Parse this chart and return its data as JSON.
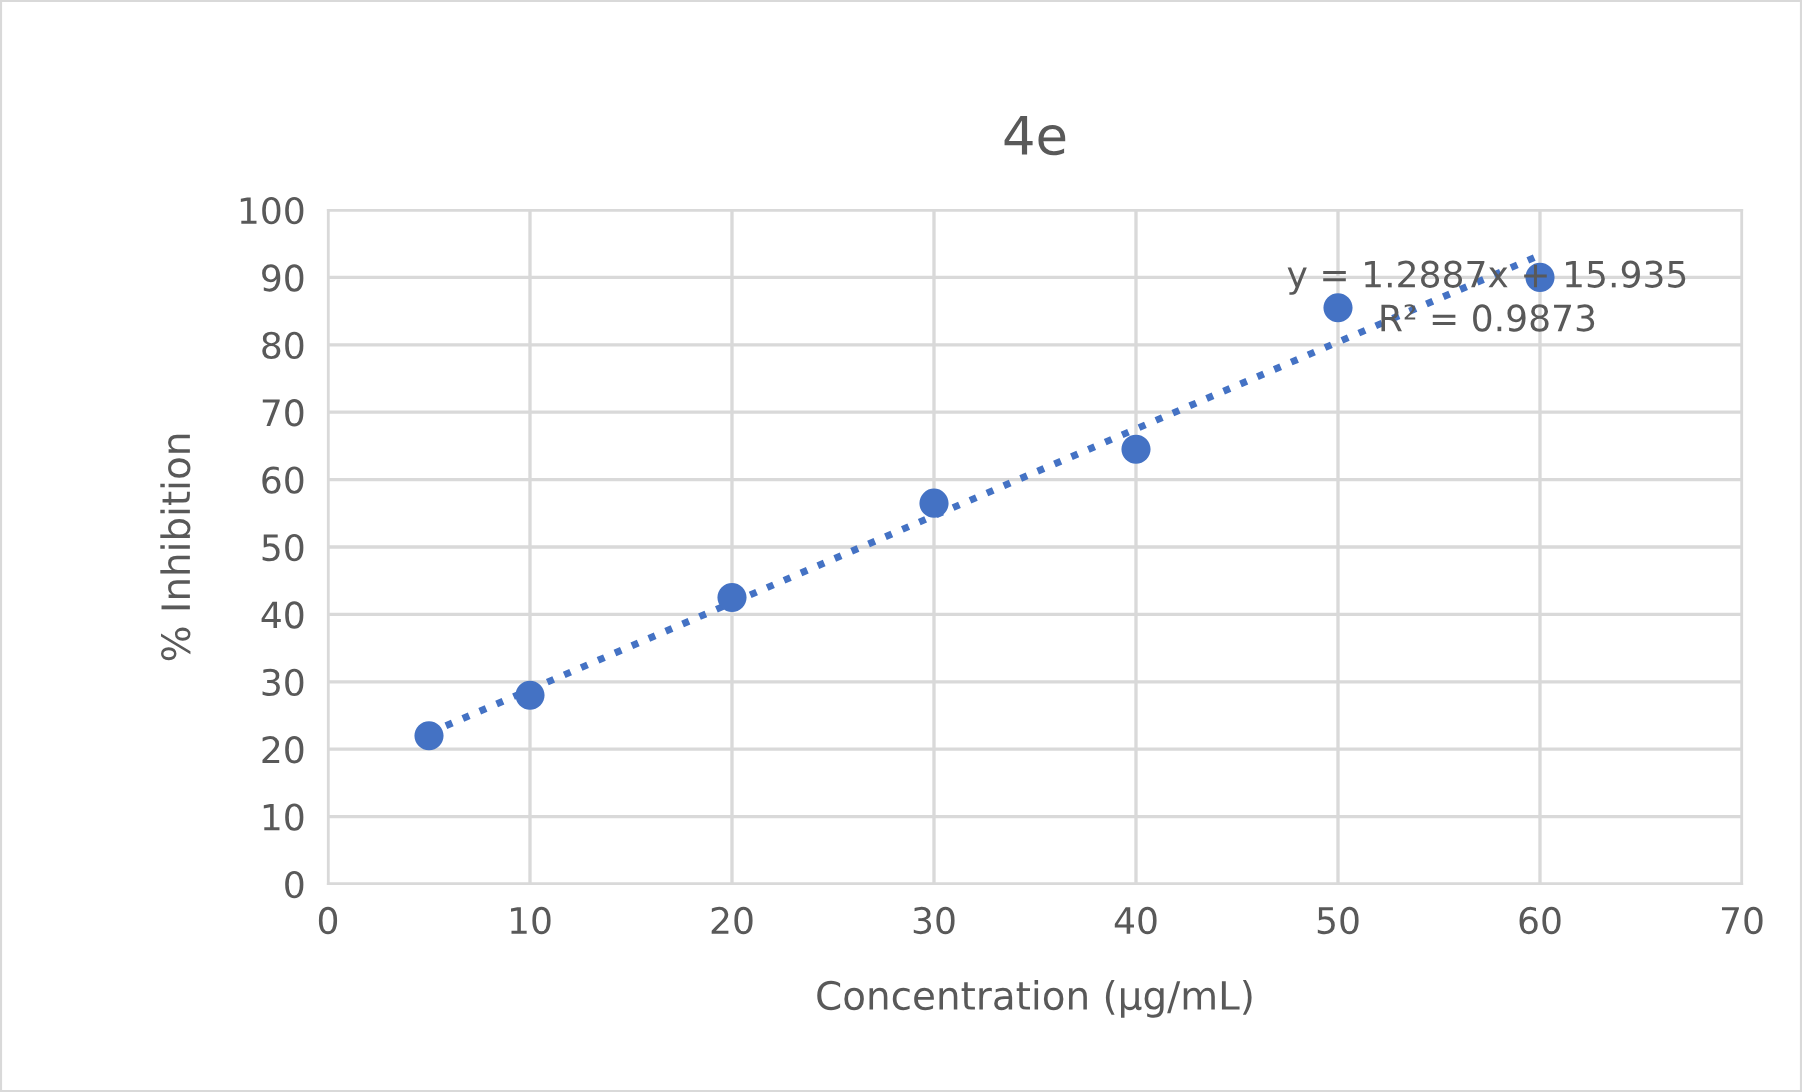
{
  "chart_data": {
    "type": "scatter",
    "title": "4e",
    "xlabel": "Concentration (µg/mL)",
    "ylabel": "% Inhibition",
    "xlim": [
      0,
      70
    ],
    "xticks": [
      0,
      10,
      20,
      30,
      40,
      50,
      60,
      70
    ],
    "ylim": [
      0,
      100
    ],
    "yticks": [
      0,
      10,
      20,
      30,
      40,
      50,
      60,
      70,
      80,
      90,
      100
    ],
    "grid": true,
    "legend": false,
    "series": [
      {
        "color": "#4472c4",
        "marker": "circle",
        "x": [
          5,
          10,
          20,
          30,
          40,
          50,
          60
        ],
        "values": [
          22,
          28,
          42.5,
          56.5,
          64.5,
          85.5,
          90
        ]
      },
      {
        "type": "line",
        "color": "#4472c4",
        "line_style": "dotted",
        "marker": "none",
        "x": [
          5,
          60
        ],
        "values": [
          22.4,
          93.3
        ]
      }
    ],
    "annotations": [
      "y = 1.2887x + 15.935",
      "R² = 0.9873"
    ]
  }
}
